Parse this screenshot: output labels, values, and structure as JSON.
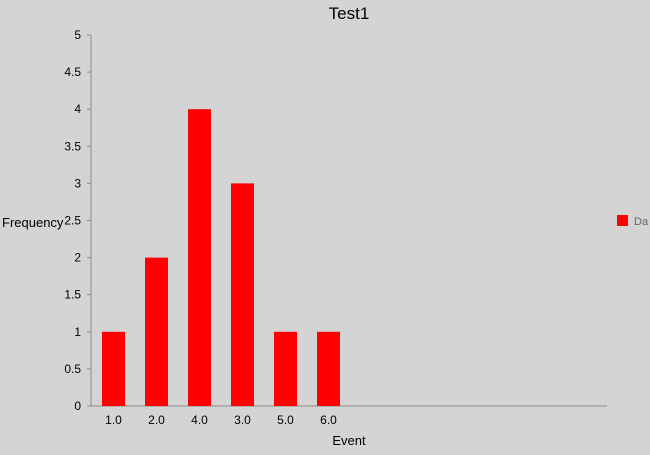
{
  "chart_data": {
    "type": "bar",
    "title": "Test1",
    "xlabel": "Event",
    "ylabel": "Frequency",
    "categories": [
      "1.0",
      "2.0",
      "4.0",
      "3.0",
      "5.0",
      "6.0"
    ],
    "series": [
      {
        "name": "Data",
        "values": [
          1,
          2,
          4,
          3,
          1,
          1
        ],
        "color": "#ff0000"
      }
    ],
    "ylim": [
      0,
      5
    ],
    "yticks": [
      "0",
      "0.5",
      "1",
      "1.5",
      "2",
      "2.5",
      "3",
      "3.5",
      "4",
      "4.5",
      "5"
    ],
    "grid": false,
    "legend_position": "right"
  },
  "legend": {
    "visible_label": "Da"
  }
}
